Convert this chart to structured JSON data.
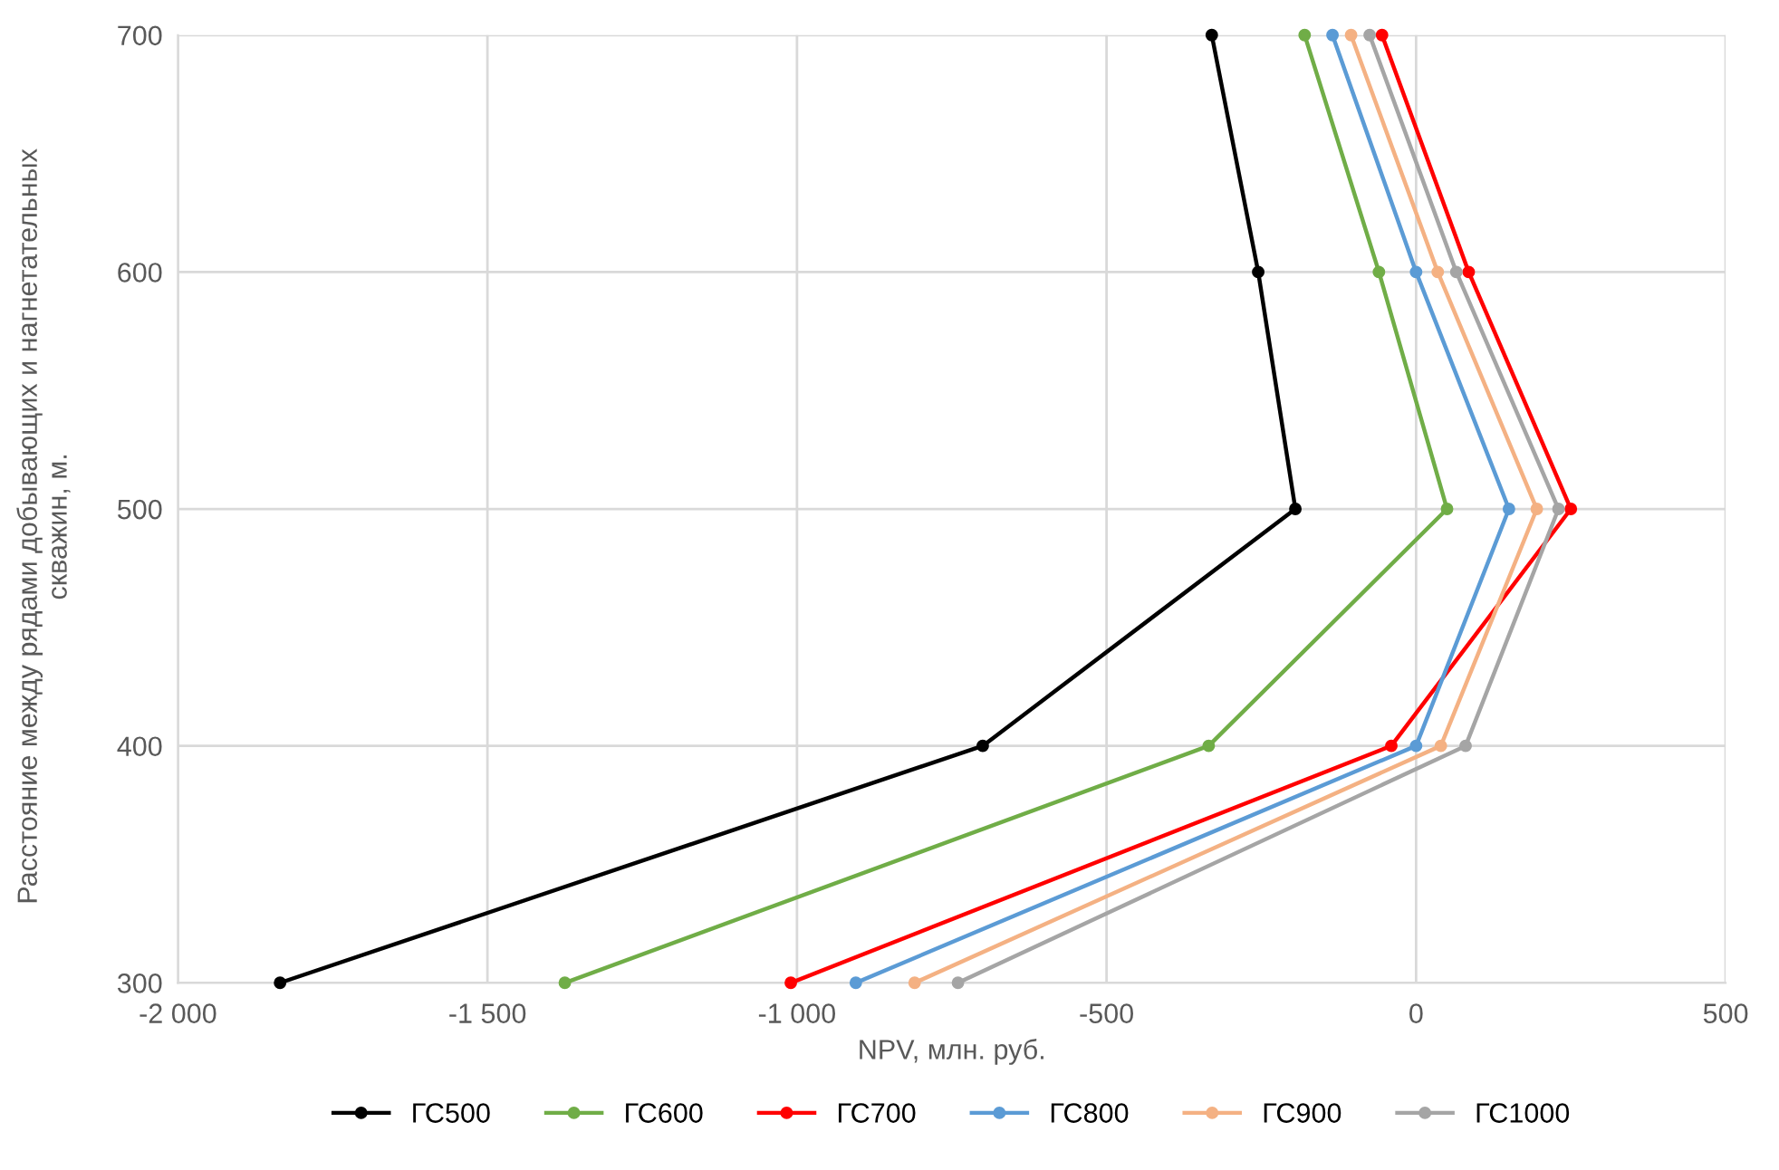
{
  "chart_data": {
    "type": "line",
    "xlabel": "NPV, млн. руб.",
    "ylabel": "Расстояние между рядами добывающих и нагнетательных\nскважин, м.",
    "xlim": [
      -2000,
      500
    ],
    "xticks": [
      {
        "value": -2000,
        "label": "-2 000"
      },
      {
        "value": -1500,
        "label": "-1 500"
      },
      {
        "value": -1000,
        "label": "-1 000"
      },
      -500,
      0,
      500
    ],
    "ylim": [
      300,
      700
    ],
    "yticks": [
      300,
      400,
      500,
      600,
      700
    ],
    "grid": true,
    "legend": "bottom",
    "marker": "circle",
    "line_style": "solid",
    "series": [
      {
        "name": "ГС500",
        "color": "#000000",
        "x": [
          -1835,
          -700,
          -195,
          -255,
          -330
        ],
        "values": [
          300,
          400,
          500,
          600,
          700
        ]
      },
      {
        "name": "ГС600",
        "color": "#70ad47",
        "x": [
          -1375,
          -335,
          50,
          -60,
          -180
        ],
        "values": [
          300,
          400,
          500,
          600,
          700
        ]
      },
      {
        "name": "ГС700",
        "color": "#ff0000",
        "x": [
          -1010,
          -40,
          250,
          85,
          -55
        ],
        "values": [
          300,
          400,
          500,
          600,
          700
        ]
      },
      {
        "name": "ГС800",
        "color": "#5b9bd5",
        "x": [
          -905,
          0,
          150,
          0,
          -135
        ],
        "values": [
          300,
          400,
          500,
          600,
          700
        ]
      },
      {
        "name": "ГС900",
        "color": "#f4b183",
        "x": [
          -810,
          40,
          195,
          35,
          -105
        ],
        "values": [
          300,
          400,
          500,
          600,
          700
        ]
      },
      {
        "name": "ГС1000",
        "color": "#a5a5a5",
        "x": [
          -740,
          80,
          230,
          65,
          -75
        ],
        "values": [
          300,
          400,
          500,
          600,
          700
        ]
      }
    ]
  }
}
